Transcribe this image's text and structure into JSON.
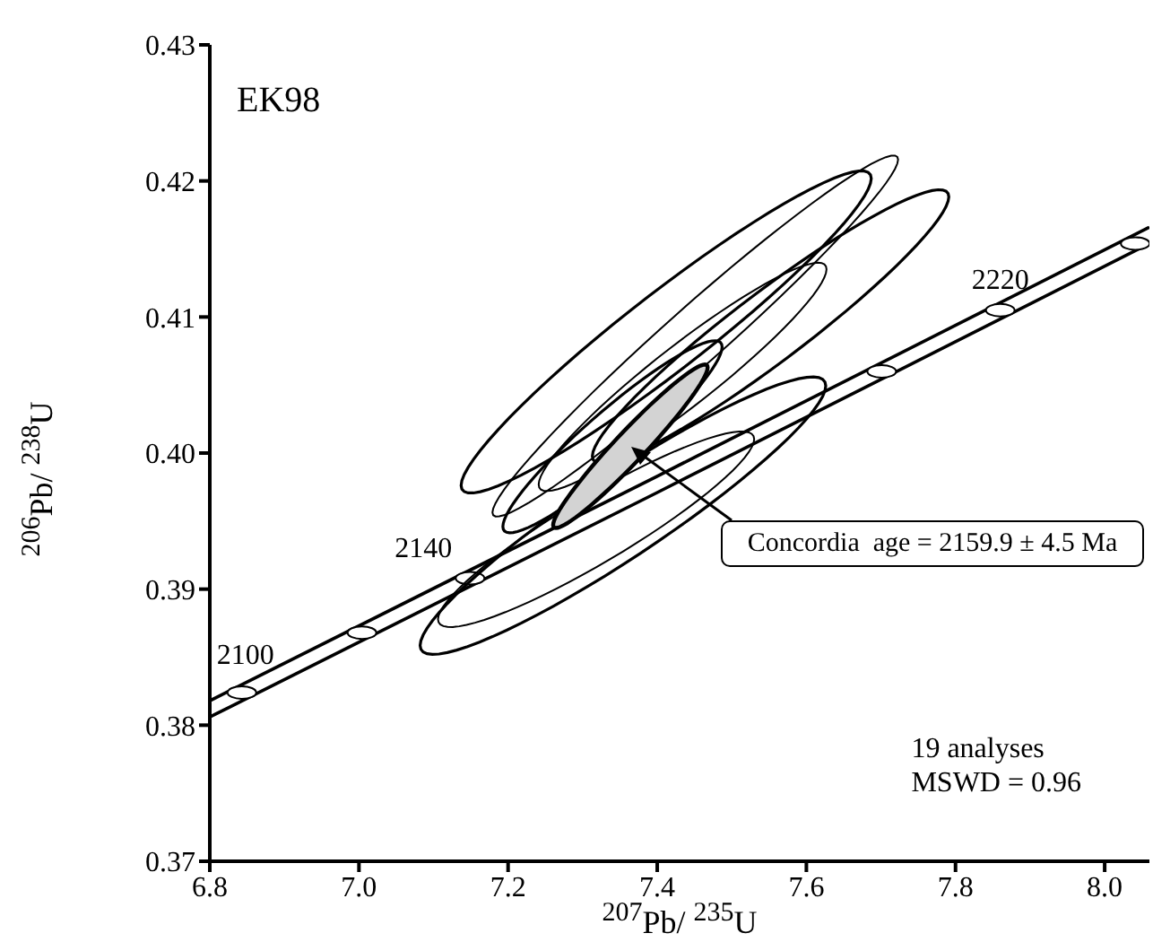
{
  "chart_data": {
    "type": "line",
    "title": "EK98",
    "xlabel": "$^{207}$Pb/ $^{235}$U",
    "ylabel": "$^{206}$Pb/ $^{238}$U",
    "xlim": [
      6.8,
      8.06
    ],
    "ylim": [
      0.37,
      0.43
    ],
    "xticks": [
      6.8,
      {
        "value": 7,
        "label": "7.0"
      },
      7.2,
      7.4,
      7.6,
      7.8,
      {
        "value": 8,
        "label": "8.0"
      }
    ],
    "yticks": [
      0.37,
      0.38,
      0.39,
      {
        "value": 0.4,
        "label": "0.40"
      },
      0.41,
      0.42,
      0.43
    ],
    "grid": false,
    "series": [
      {
        "color": "#000000",
        "x": [
          6.8,
          7.4,
          8.06
        ],
        "values": [
          0.3818,
          0.3983,
          0.4166
        ]
      },
      {
        "color": "#000000",
        "x": [
          6.8,
          7.4,
          8.06
        ],
        "values": [
          0.3806,
          0.3971,
          0.4154
        ]
      },
      {
        "type": "scatter",
        "color": "#000000",
        "marker": "circle",
        "x": [
          6.843,
          7.004,
          7.149,
          7.701,
          7.86,
          8.041
        ],
        "values": [
          0.3824,
          0.3868,
          0.3908,
          0.406,
          0.4105,
          0.4154
        ]
      }
    ],
    "annotations": [
      {
        "text": "2100",
        "x": 6.843,
        "y": 0.3824
      },
      {
        "text": "2140",
        "x": 7.149,
        "y": 0.3908
      },
      {
        "text": "2220",
        "x": 7.86,
        "y": 0.4105
      },
      "Concordia  age = 2159.9 ± 4.5 Ma",
      "19 analyses",
      "MSWD = 0.96"
    ]
  }
}
